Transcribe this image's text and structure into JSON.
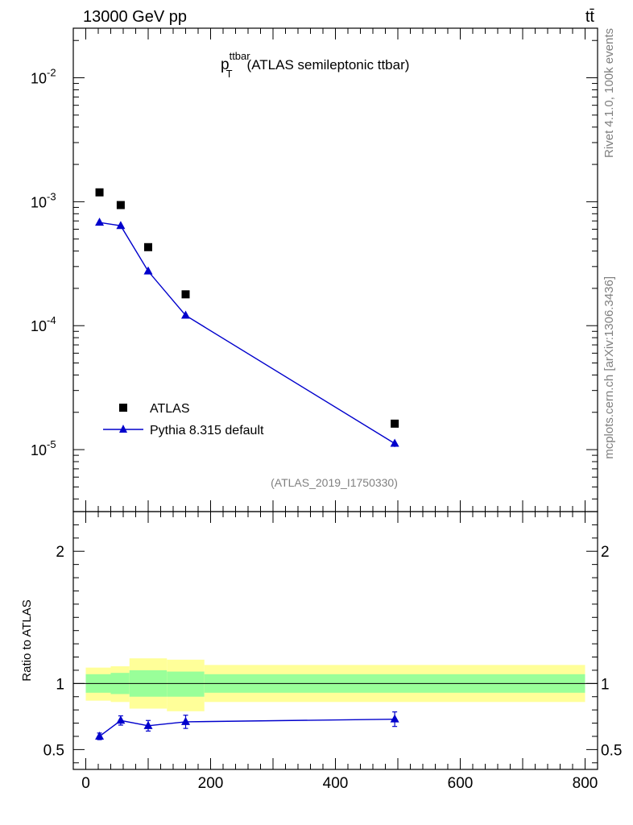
{
  "header": {
    "energy_label": "13000 GeV pp",
    "process_label": "tt̄"
  },
  "side_labels": {
    "rivet": "Rivet 4.1.0,  100k events",
    "mcplots": "mcplots.cern.ch [arXiv:1306.3436]"
  },
  "chart_data": [
    {
      "type": "scatter",
      "panel": "main",
      "title_main": "p",
      "title_sup": "ttbar",
      "title_sub": "T",
      "title_rest": "(ATLAS semileptonic ttbar)",
      "analysis_label": "(ATLAS_2019_I1750330)",
      "yscale": "log",
      "xlim": [
        -20,
        820
      ],
      "ylim_log10": [
        -5.5,
        -1.6
      ],
      "y_ticks": [
        {
          "exp": "-2",
          "label": "10"
        },
        {
          "exp": "-3",
          "label": "10"
        },
        {
          "exp": "-4",
          "label": "10"
        },
        {
          "exp": "-5",
          "label": "10"
        }
      ],
      "legend": [
        "ATLAS",
        "Pythia 8.315 default"
      ],
      "legend_position": "lower-left",
      "series": [
        {
          "name": "ATLAS",
          "marker": "square",
          "color": "#000000",
          "x": [
            22,
            56,
            100,
            160,
            495
          ],
          "y": [
            0.00119,
            0.00094,
            0.00043,
            0.000179,
            1.62e-05
          ]
        },
        {
          "name": "Pythia 8.315 default",
          "marker": "triangle",
          "color": "#0000cc",
          "line": true,
          "x": [
            22,
            56,
            100,
            160,
            495
          ],
          "y": [
            0.00068,
            0.00064,
            0.000275,
            0.000121,
            1.12e-05
          ],
          "err": [
            2e-05,
            2e-05,
            1e-05,
            6e-06,
            7e-07
          ]
        }
      ]
    },
    {
      "type": "scatter",
      "panel": "ratio",
      "ylabel": "Ratio to ATLAS",
      "xlim": [
        -20,
        820
      ],
      "ylim": [
        0.35,
        2.3
      ],
      "y_ticks": [
        0.5,
        1,
        2
      ],
      "y_tick_labels": [
        "0.5",
        "1",
        "2"
      ],
      "x_ticks": [
        0,
        200,
        400,
        600,
        800
      ],
      "x_tick_labels": [
        "0",
        "200",
        "400",
        "600",
        "800"
      ],
      "bands": [
        {
          "x0": 0,
          "x1": 40,
          "inner": [
            0.93,
            1.07
          ],
          "outer": [
            0.87,
            1.12
          ]
        },
        {
          "x0": 40,
          "x1": 70,
          "inner": [
            0.92,
            1.08
          ],
          "outer": [
            0.86,
            1.13
          ]
        },
        {
          "x0": 70,
          "x1": 130,
          "inner": [
            0.9,
            1.1
          ],
          "outer": [
            0.81,
            1.19
          ]
        },
        {
          "x0": 130,
          "x1": 190,
          "inner": [
            0.9,
            1.09
          ],
          "outer": [
            0.79,
            1.18
          ]
        },
        {
          "x0": 190,
          "x1": 800,
          "inner": [
            0.93,
            1.07
          ],
          "outer": [
            0.86,
            1.14
          ]
        }
      ],
      "band_colors": {
        "inner": "#99ff99",
        "outer": "#ffff99"
      },
      "series": [
        {
          "name": "Pythia 8.315 default",
          "color": "#0000cc",
          "x": [
            22,
            56,
            100,
            160,
            495
          ],
          "y": [
            0.6,
            0.72,
            0.68,
            0.71,
            0.73
          ],
          "err": [
            0.025,
            0.035,
            0.04,
            0.05,
            0.055
          ]
        }
      ]
    }
  ]
}
